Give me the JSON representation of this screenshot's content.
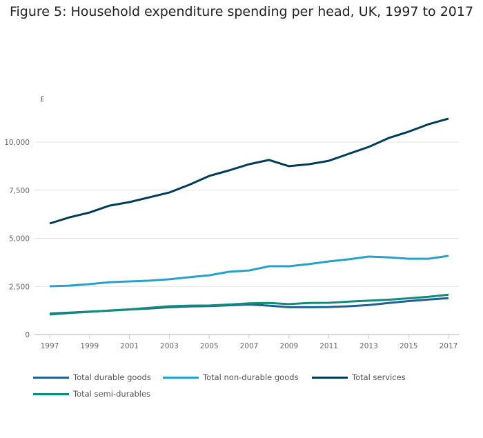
{
  "chart_data": {
    "type": "line",
    "title": "Figure 5: Household expenditure spending per head, UK, 1997 to 2017",
    "ylabel": "£",
    "xlabel": "",
    "x": [
      1997,
      1998,
      1999,
      2000,
      2001,
      2002,
      2003,
      2004,
      2005,
      2006,
      2007,
      2008,
      2009,
      2010,
      2011,
      2012,
      2013,
      2014,
      2015,
      2016,
      2017
    ],
    "xticks": [
      "1997",
      "1999",
      "2001",
      "2003",
      "2005",
      "2007",
      "2009",
      "2011",
      "2013",
      "2015",
      "2017"
    ],
    "yticks": [
      "0",
      "2,500",
      "5,000",
      "7,500",
      "10,000"
    ],
    "ylim": [
      0,
      11500
    ],
    "grid": true,
    "legend_position": "bottom",
    "series": [
      {
        "name": "Total durable goods",
        "color": "#206095",
        "values": [
          1090,
          1140,
          1190,
          1240,
          1300,
          1350,
          1420,
          1460,
          1480,
          1520,
          1560,
          1500,
          1420,
          1420,
          1430,
          1470,
          1530,
          1640,
          1740,
          1820,
          1890
        ]
      },
      {
        "name": "Total non-durable goods",
        "color": "#27a0cc",
        "values": [
          2510,
          2540,
          2620,
          2720,
          2760,
          2800,
          2870,
          2980,
          3080,
          3260,
          3330,
          3550,
          3550,
          3660,
          3800,
          3910,
          4050,
          4010,
          3940,
          3940,
          4090
        ]
      },
      {
        "name": "Total services",
        "color": "#003c57",
        "values": [
          5770,
          6090,
          6340,
          6700,
          6880,
          7130,
          7380,
          7780,
          8240,
          8530,
          8850,
          9070,
          8750,
          8850,
          9030,
          9390,
          9750,
          10210,
          10540,
          10930,
          11220
        ]
      },
      {
        "name": "Total semi-durables",
        "color": "#118c7b",
        "values": [
          1040,
          1120,
          1180,
          1250,
          1310,
          1390,
          1470,
          1500,
          1510,
          1560,
          1620,
          1640,
          1580,
          1640,
          1650,
          1710,
          1760,
          1810,
          1880,
          1960,
          2070
        ]
      }
    ]
  }
}
